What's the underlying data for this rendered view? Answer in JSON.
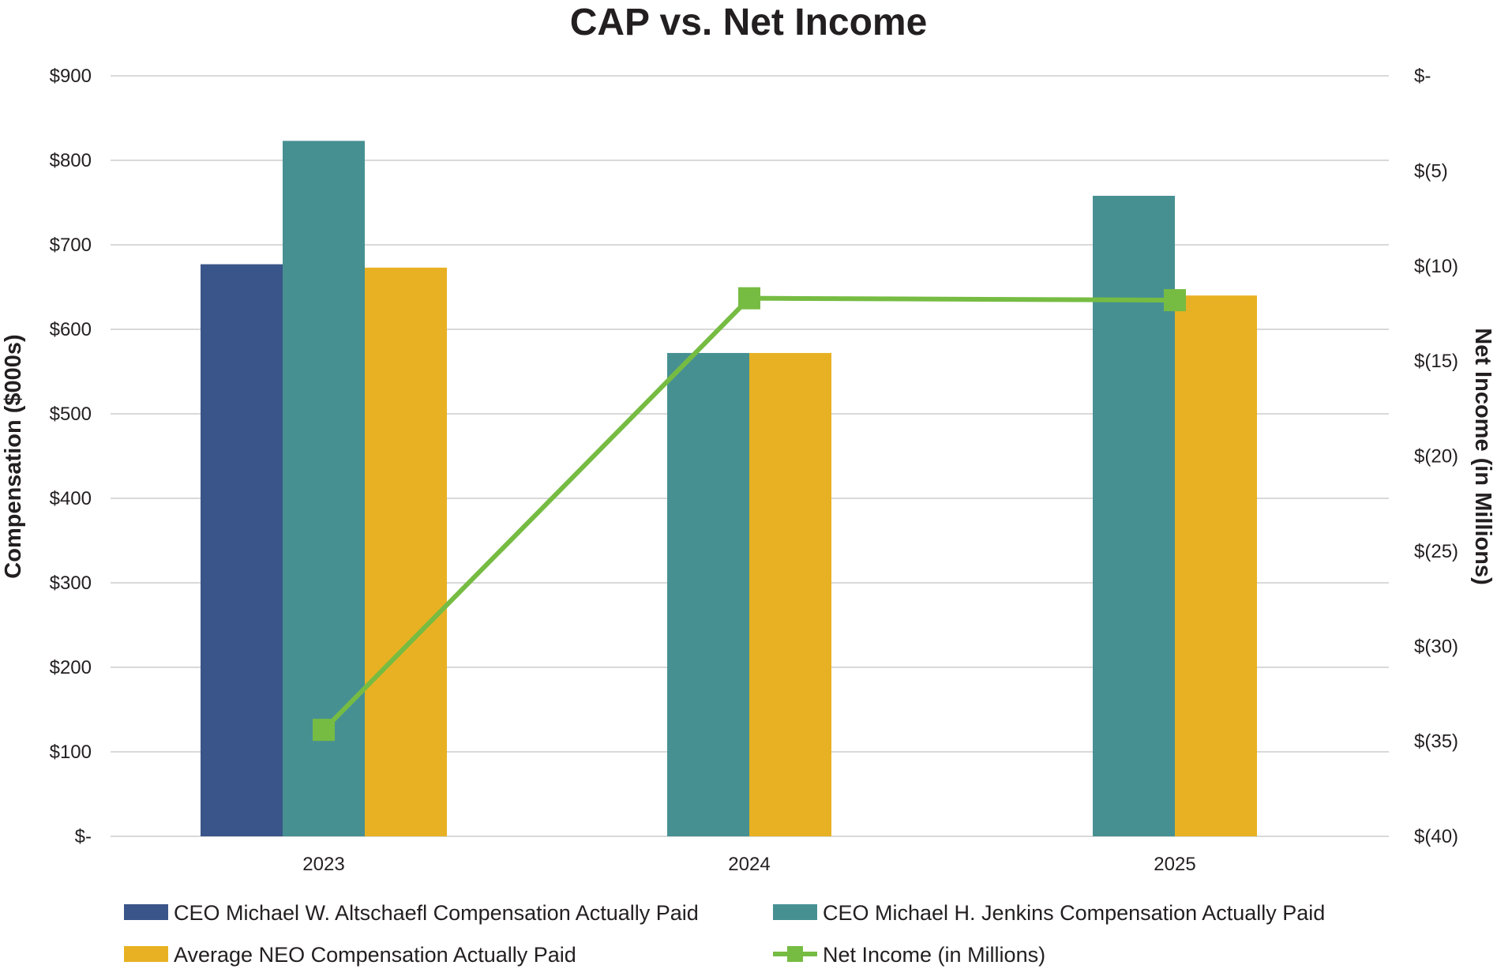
{
  "chart_data": {
    "type": "bar",
    "title": "CAP vs. Net Income",
    "xlabel": "",
    "ylabel": "Compensation ($000s)",
    "y2label": "Net Income (in Millions)",
    "categories": [
      "2023",
      "2024",
      "2025"
    ],
    "ylim": [
      0,
      900
    ],
    "y_ticks": [
      0,
      100,
      200,
      300,
      400,
      500,
      600,
      700,
      800,
      900
    ],
    "y_tick_labels": [
      "$-",
      "$100",
      "$200",
      "$300",
      "$400",
      "$500",
      "$600",
      "$700",
      "$800",
      "$900"
    ],
    "y2lim": [
      -40,
      0
    ],
    "y2_ticks": [
      0,
      -5,
      -10,
      -15,
      -20,
      -25,
      -30,
      -35,
      -40
    ],
    "y2_tick_labels": [
      "$-",
      "$(5)",
      "$(10)",
      "$(15)",
      "$(20)",
      "$(25)",
      "$(30)",
      "$(35)",
      "$(40)"
    ],
    "grid": true,
    "legend_position": "bottom",
    "series": [
      {
        "name": "CEO Michael W. Altschaefl Compensation Actually Paid",
        "type": "bar",
        "color": "#3a5589",
        "values": [
          677,
          null,
          null
        ]
      },
      {
        "name": "CEO Michael H. Jenkins Compensation Actually Paid",
        "type": "bar",
        "color": "#479092",
        "values": [
          823,
          572,
          758
        ]
      },
      {
        "name": "Average NEO Compensation Actually Paid",
        "type": "bar",
        "color": "#e8b123",
        "values": [
          673,
          572,
          640
        ]
      },
      {
        "name": "Net Income (in Millions)",
        "type": "line",
        "axis": "right",
        "color": "#76bc43",
        "values": [
          -34.4,
          -11.7,
          -11.8
        ]
      }
    ]
  }
}
